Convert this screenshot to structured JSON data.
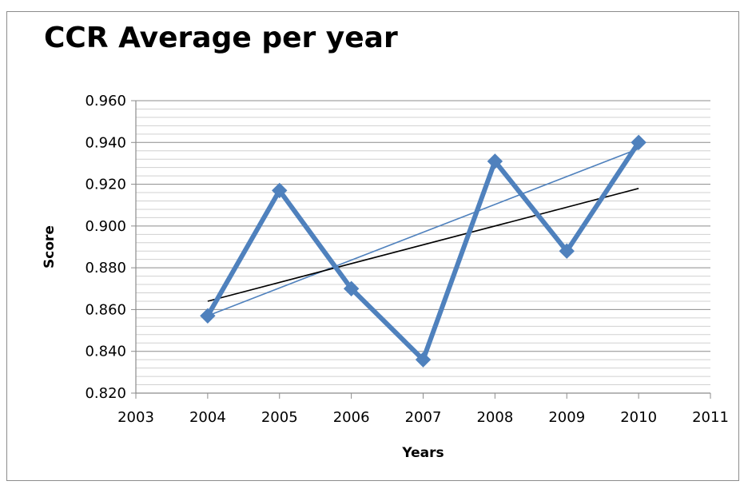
{
  "chart_data": {
    "type": "line",
    "title": "CCR Average per year",
    "xlabel": "Years",
    "ylabel": "Score",
    "xlim": [
      2003,
      2011
    ],
    "ylim": [
      0.82,
      0.96
    ],
    "x_ticks": [
      "2003",
      "2004",
      "2005",
      "2006",
      "2007",
      "2008",
      "2009",
      "2010",
      "2011"
    ],
    "y_ticks": [
      "0.820",
      "0.840",
      "0.860",
      "0.880",
      "0.900",
      "0.920",
      "0.940",
      "0.960"
    ],
    "grid": "horizontal",
    "series": [
      {
        "x": [
          2004,
          2005,
          2006,
          2007,
          2008,
          2009,
          2010
        ],
        "y": [
          0.857,
          0.917,
          0.87,
          0.836,
          0.931,
          0.888,
          0.94
        ],
        "color": "#4f81bd",
        "marker": "diamond"
      }
    ],
    "trendlines": [
      {
        "x": [
          2004,
          2010
        ],
        "y": [
          0.857,
          0.937
        ],
        "color": "#4f81bd"
      },
      {
        "x": [
          2004,
          2010
        ],
        "y": [
          0.864,
          0.918
        ],
        "color": "#000000"
      }
    ]
  }
}
